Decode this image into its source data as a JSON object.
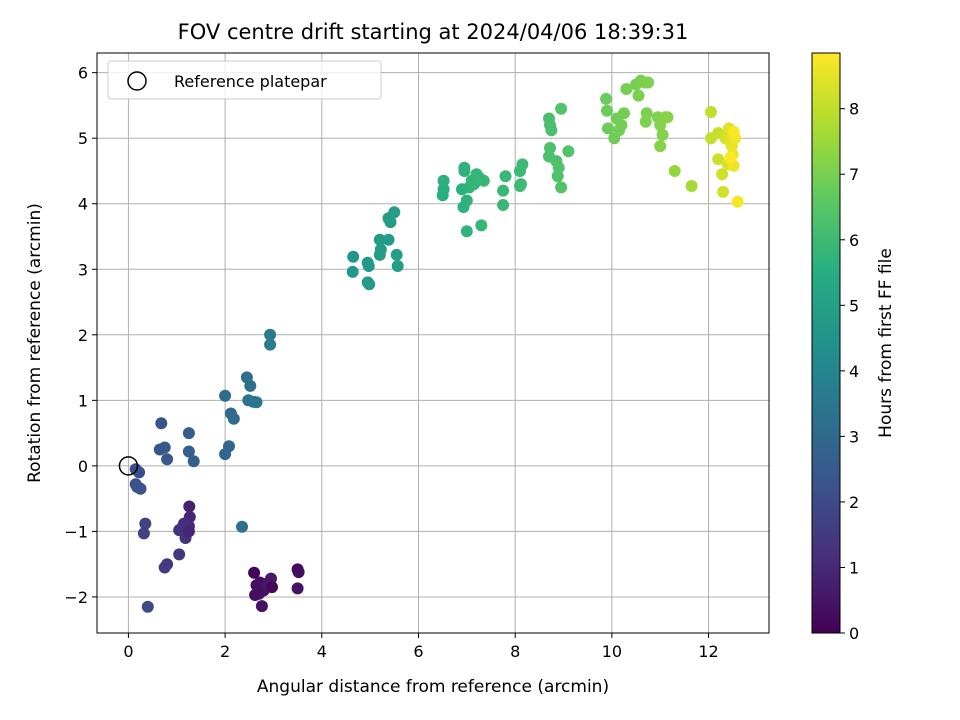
{
  "chart_data": {
    "type": "scatter",
    "title": "FOV centre drift starting at 2024/04/06 18:39:31",
    "xlabel": "Angular distance from reference (arcmin)",
    "ylabel": "Rotation from reference (arcmin)",
    "xlim": [
      -0.65,
      13.25
    ],
    "ylim": [
      -2.55,
      6.3
    ],
    "x_ticks": [
      0,
      2,
      4,
      6,
      8,
      10,
      12
    ],
    "y_ticks": [
      -2,
      -1,
      0,
      1,
      2,
      3,
      4,
      5,
      6
    ],
    "grid": true,
    "legend": {
      "placement": "top-left",
      "entries": [
        "Reference platepar"
      ]
    },
    "reference_point": {
      "name": "Reference platepar",
      "x": 0.0,
      "y": 0.0
    },
    "colorbar": {
      "label": "Hours from first FF file",
      "colormap": "viridis",
      "range": [
        0,
        8.85
      ],
      "ticks": [
        0,
        1,
        2,
        3,
        4,
        5,
        6,
        7,
        8
      ]
    },
    "series": [
      {
        "points": [
          [
            2.6,
            -1.63,
            0.1
          ],
          [
            2.62,
            -1.97,
            0.25
          ],
          [
            2.65,
            -1.82,
            0.3
          ],
          [
            2.72,
            -1.78,
            0.35
          ],
          [
            2.76,
            -2.14,
            0.4
          ],
          [
            2.8,
            -1.9,
            0.45
          ],
          [
            2.86,
            -1.83,
            0.5
          ],
          [
            2.9,
            -1.78,
            0.55
          ],
          [
            2.95,
            -1.72,
            0.6
          ],
          [
            2.97,
            -1.85,
            0.2
          ],
          [
            3.5,
            -1.58,
            0.15
          ],
          [
            3.52,
            -1.62,
            0.3
          ],
          [
            3.5,
            -1.87,
            0.45
          ],
          [
            2.7,
            -1.95,
            0.35
          ],
          [
            1.26,
            -0.62,
            0.8
          ],
          [
            1.27,
            -0.78,
            0.95
          ],
          [
            1.25,
            -0.92,
            1.05
          ],
          [
            1.2,
            -1.0,
            1.1
          ],
          [
            1.15,
            -0.88,
            1.15
          ],
          [
            1.1,
            -0.95,
            1.2
          ],
          [
            1.05,
            -0.98,
            1.25
          ],
          [
            1.18,
            -1.1,
            1.3
          ],
          [
            1.25,
            -1.0,
            0.9
          ],
          [
            1.05,
            -1.35,
            1.4
          ],
          [
            0.8,
            -1.5,
            1.45
          ],
          [
            0.75,
            -1.55,
            1.5
          ],
          [
            0.35,
            -0.88,
            1.8
          ],
          [
            0.32,
            -1.03,
            1.7
          ],
          [
            0.4,
            -2.15,
            1.95
          ],
          [
            0.15,
            -0.05,
            2.0
          ],
          [
            0.22,
            -0.1,
            2.05
          ],
          [
            0.15,
            -0.28,
            2.1
          ],
          [
            0.18,
            -0.32,
            2.15
          ],
          [
            0.25,
            -0.35,
            2.2
          ],
          [
            0.68,
            0.65,
            2.3
          ],
          [
            0.65,
            0.25,
            2.35
          ],
          [
            0.75,
            0.28,
            2.4
          ],
          [
            0.8,
            0.1,
            2.45
          ],
          [
            1.25,
            0.5,
            2.6
          ],
          [
            1.25,
            0.22,
            2.65
          ],
          [
            1.35,
            0.07,
            2.7
          ],
          [
            2.0,
            0.18,
            2.9
          ],
          [
            2.08,
            0.3,
            2.95
          ],
          [
            2.12,
            0.8,
            3.0
          ],
          [
            2.18,
            0.72,
            3.05
          ],
          [
            2.0,
            1.07,
            3.1
          ],
          [
            2.45,
            1.35,
            3.2
          ],
          [
            2.52,
            1.22,
            3.25
          ],
          [
            2.48,
            1.0,
            3.3
          ],
          [
            2.58,
            0.98,
            3.35
          ],
          [
            2.65,
            0.97,
            3.4
          ],
          [
            2.35,
            -0.93,
            3.3
          ],
          [
            2.93,
            2.0,
            3.6
          ],
          [
            2.93,
            1.85,
            3.65
          ],
          [
            4.65,
            3.19,
            4.6
          ],
          [
            4.64,
            2.96,
            4.65
          ],
          [
            4.95,
            3.1,
            4.7
          ],
          [
            4.97,
            3.05,
            4.72
          ],
          [
            4.95,
            2.8,
            4.75
          ],
          [
            4.98,
            2.77,
            4.77
          ],
          [
            5.2,
            3.45,
            4.8
          ],
          [
            5.22,
            3.3,
            4.82
          ],
          [
            5.2,
            3.22,
            4.84
          ],
          [
            5.38,
            3.45,
            4.86
          ],
          [
            5.38,
            3.78,
            4.88
          ],
          [
            5.42,
            3.72,
            4.9
          ],
          [
            5.5,
            3.87,
            4.92
          ],
          [
            5.55,
            3.22,
            4.94
          ],
          [
            5.57,
            3.05,
            4.96
          ],
          [
            6.5,
            4.13,
            5.5
          ],
          [
            6.52,
            4.22,
            5.55
          ],
          [
            6.52,
            4.35,
            5.6
          ],
          [
            6.9,
            4.22,
            5.62
          ],
          [
            6.93,
            3.95,
            5.64
          ],
          [
            6.95,
            4.55,
            5.66
          ],
          [
            6.95,
            4.5,
            5.68
          ],
          [
            7.0,
            4.05,
            5.7
          ],
          [
            7.0,
            3.58,
            5.72
          ],
          [
            7.05,
            4.25,
            5.74
          ],
          [
            7.1,
            4.35,
            5.76
          ],
          [
            7.15,
            4.3,
            5.78
          ],
          [
            7.2,
            4.45,
            5.8
          ],
          [
            7.25,
            4.4,
            5.82
          ],
          [
            7.3,
            3.67,
            5.84
          ],
          [
            7.35,
            4.35,
            5.86
          ],
          [
            7.75,
            4.2,
            5.88
          ],
          [
            7.75,
            3.98,
            5.9
          ],
          [
            7.8,
            4.42,
            5.92
          ],
          [
            8.1,
            4.5,
            5.95
          ],
          [
            8.12,
            4.3,
            5.97
          ],
          [
            8.15,
            4.6,
            6.0
          ],
          [
            8.1,
            4.27,
            6.02
          ],
          [
            8.7,
            5.3,
            6.2
          ],
          [
            8.72,
            5.2,
            6.22
          ],
          [
            8.75,
            5.12,
            6.24
          ],
          [
            8.72,
            4.85,
            6.26
          ],
          [
            8.7,
            4.72,
            6.28
          ],
          [
            8.85,
            4.65,
            6.3
          ],
          [
            8.9,
            4.55,
            6.32
          ],
          [
            8.88,
            4.42,
            6.34
          ],
          [
            8.95,
            4.25,
            6.36
          ],
          [
            9.1,
            4.8,
            6.38
          ],
          [
            8.95,
            5.45,
            6.4
          ],
          [
            9.88,
            5.6,
            6.8
          ],
          [
            9.9,
            5.42,
            6.82
          ],
          [
            9.92,
            5.15,
            6.84
          ],
          [
            10.05,
            5.0,
            6.86
          ],
          [
            10.1,
            5.3,
            6.88
          ],
          [
            10.15,
            5.12,
            6.9
          ],
          [
            10.2,
            5.2,
            6.92
          ],
          [
            10.25,
            5.38,
            6.94
          ],
          [
            10.3,
            5.75,
            6.96
          ],
          [
            10.5,
            5.82,
            6.98
          ],
          [
            10.6,
            5.88,
            7.0
          ],
          [
            10.55,
            5.65,
            7.02
          ],
          [
            10.68,
            5.85,
            7.04
          ],
          [
            10.72,
            5.38,
            7.06
          ],
          [
            10.7,
            5.25,
            7.08
          ],
          [
            10.75,
            5.85,
            7.1
          ],
          [
            10.95,
            5.32,
            7.12
          ],
          [
            11.0,
            5.2,
            7.14
          ],
          [
            11.05,
            5.05,
            7.16
          ],
          [
            11.0,
            4.88,
            7.18
          ],
          [
            11.1,
            5.32,
            7.2
          ],
          [
            11.15,
            5.32,
            7.22
          ],
          [
            11.3,
            4.5,
            7.4
          ],
          [
            11.65,
            4.27,
            7.6
          ],
          [
            12.05,
            5.4,
            8.0
          ],
          [
            12.05,
            5.0,
            8.05
          ],
          [
            12.2,
            5.08,
            8.1
          ],
          [
            12.2,
            4.68,
            8.15
          ],
          [
            12.28,
            4.45,
            8.2
          ],
          [
            12.3,
            4.18,
            8.25
          ],
          [
            12.35,
            5.0,
            8.3
          ],
          [
            12.4,
            4.6,
            8.35
          ],
          [
            12.42,
            5.15,
            8.4
          ],
          [
            12.45,
            4.95,
            8.45
          ],
          [
            12.5,
            5.05,
            8.5
          ],
          [
            12.48,
            4.88,
            8.55
          ],
          [
            12.5,
            4.75,
            8.6
          ],
          [
            12.52,
            4.58,
            8.65
          ],
          [
            12.55,
            5.0,
            8.7
          ],
          [
            12.6,
            4.03,
            8.75
          ],
          [
            12.52,
            5.1,
            8.8
          ],
          [
            12.45,
            4.7,
            8.85
          ]
        ]
      }
    ]
  }
}
